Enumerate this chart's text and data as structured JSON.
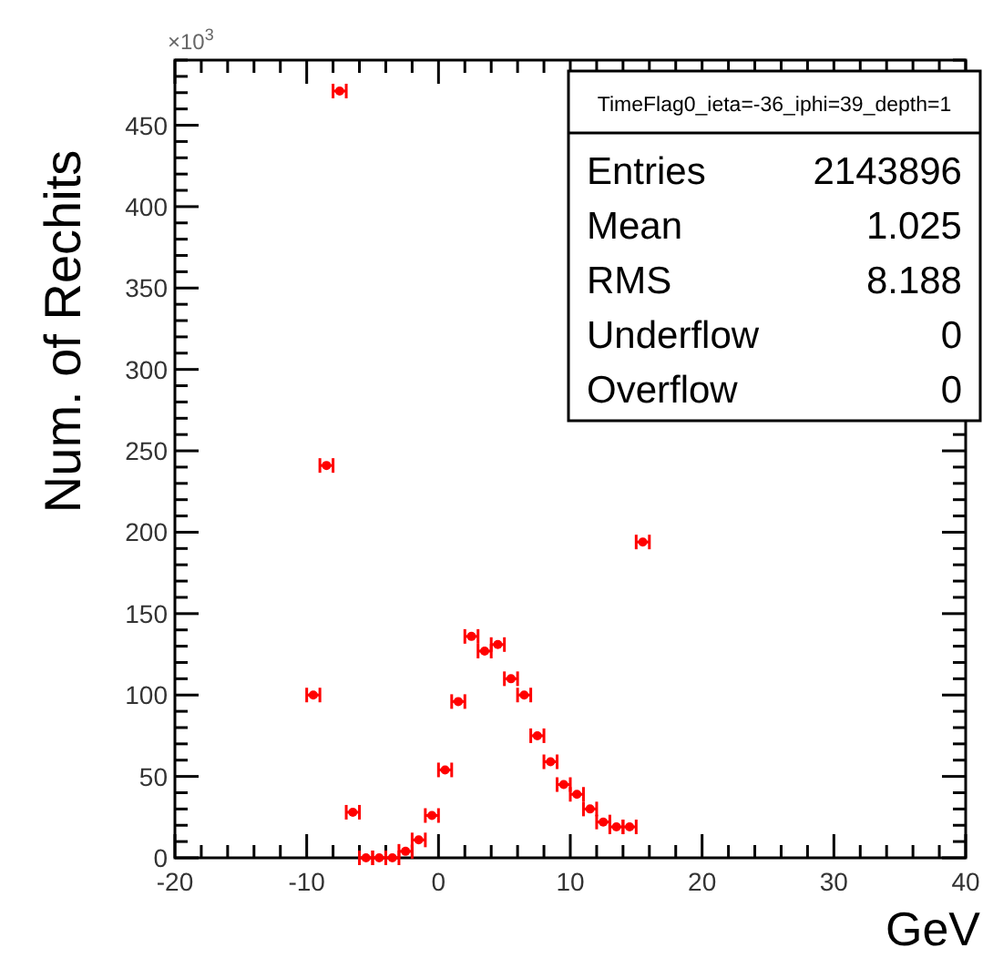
{
  "chart_data": {
    "type": "scatter",
    "title": "TimeFlag0_ieta=-36_iphi=39_depth=1",
    "xlabel": "GeV",
    "ylabel": "Num. of Rechits",
    "annotations": [
      "×10$^{3}$",
      "Entries",
      "2143896",
      "Mean",
      "1.025",
      "RMS",
      "8.188",
      "Underflow",
      "0",
      "Overflow",
      "0"
    ],
    "x": [
      -9.5,
      -8.5,
      -7.5,
      -6.5,
      -5.5,
      -4.5,
      -3.5,
      -2.5,
      -1.5,
      -0.5,
      0.5,
      1.5,
      2.5,
      3.5,
      4.5,
      5.5,
      6.5,
      7.5,
      8.5,
      9.5,
      10.5,
      11.5,
      12.5,
      13.5,
      14.5,
      15.5
    ],
    "series": [
      {
        "color": "#ff0000",
        "values": [
          100,
          241,
          471,
          28,
          0,
          0,
          0,
          4,
          11,
          26,
          54,
          96,
          136,
          127,
          131,
          110,
          100,
          75,
          59,
          45,
          39,
          30,
          22,
          19,
          19,
          194
        ],
        "xerrors": [
          0.5,
          0.5,
          0.5,
          0.5,
          0.5,
          0.5,
          0.5,
          0.5,
          0.5,
          0.5,
          0.5,
          0.5,
          0.5,
          0.5,
          0.5,
          0.5,
          0.5,
          0.5,
          0.5,
          0.5,
          0.5,
          0.5,
          0.5,
          0.5,
          0.5,
          0.5
        ]
      }
    ],
    "xlim": [
      -20,
      40
    ],
    "xticks": [
      -20,
      -10,
      0,
      10,
      20,
      30,
      40
    ],
    "ylim": [
      0,
      490
    ],
    "yticks": [
      0,
      50,
      100,
      150,
      200,
      250,
      300,
      350,
      400,
      450
    ],
    "grid": false,
    "marker": "circle"
  }
}
